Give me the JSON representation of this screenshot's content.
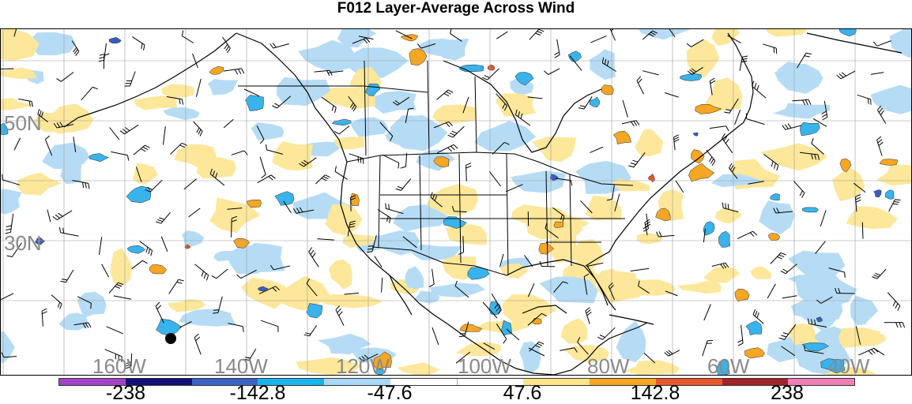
{
  "title": "F012 Layer-Average Across Wind",
  "map": {
    "lat_labels": [
      "50N",
      "30N"
    ],
    "lon_labels": [
      "160W",
      "140W",
      "120W",
      "100W",
      "80W",
      "60W",
      "40W"
    ]
  },
  "colorbar": {
    "colors": [
      "#a442c6",
      "#12127a",
      "#3d62c8",
      "#17b4ec",
      "#a9d8f6",
      "#ffffff",
      "#ffffff",
      "#fbe58a",
      "#f5a623",
      "#e8542c",
      "#a3232a",
      "#ef7fb3"
    ],
    "labels": [
      "-238",
      "-142.8",
      "-47.6",
      "47.6",
      "142.8",
      "238"
    ]
  },
  "colors": {
    "light_blue": "#b6dcf5",
    "blue": "#38b3ec",
    "dark_blue": "#3b5cc6",
    "yellow": "#fde79a",
    "orange": "#f5a623",
    "red": "#e8542c",
    "grid": "#9b9b9b"
  }
}
